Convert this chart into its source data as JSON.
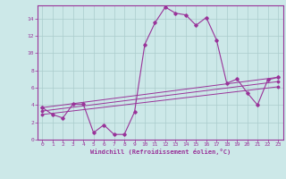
{
  "background_color": "#cce8e8",
  "grid_color": "#aacccc",
  "line_color": "#993399",
  "xlabel": "Windchill (Refroidissement éolien,°C)",
  "xlim": [
    -0.5,
    23.5
  ],
  "ylim": [
    0,
    15.5
  ],
  "xticks": [
    0,
    1,
    2,
    3,
    4,
    5,
    6,
    7,
    8,
    9,
    10,
    11,
    12,
    13,
    14,
    15,
    16,
    17,
    18,
    19,
    20,
    21,
    22,
    23
  ],
  "yticks": [
    0,
    2,
    4,
    6,
    8,
    10,
    12,
    14
  ],
  "main_series_x": [
    0,
    1,
    2,
    3,
    4,
    5,
    6,
    7,
    8,
    9,
    10,
    11,
    12,
    13,
    14,
    15,
    16,
    17,
    18,
    19,
    20,
    21,
    22,
    23
  ],
  "main_series_y": [
    3.7,
    2.9,
    2.5,
    4.1,
    4.1,
    0.8,
    1.7,
    0.6,
    0.6,
    3.2,
    11.0,
    13.5,
    15.3,
    14.6,
    14.4,
    13.2,
    14.1,
    11.5,
    6.5,
    7.0,
    5.4,
    4.0,
    6.9,
    7.2
  ],
  "line1_y_start": 3.7,
  "line1_y_end": 7.2,
  "line2_y_start": 3.3,
  "line2_y_end": 6.7,
  "line3_y_start": 2.9,
  "line3_y_end": 6.1
}
